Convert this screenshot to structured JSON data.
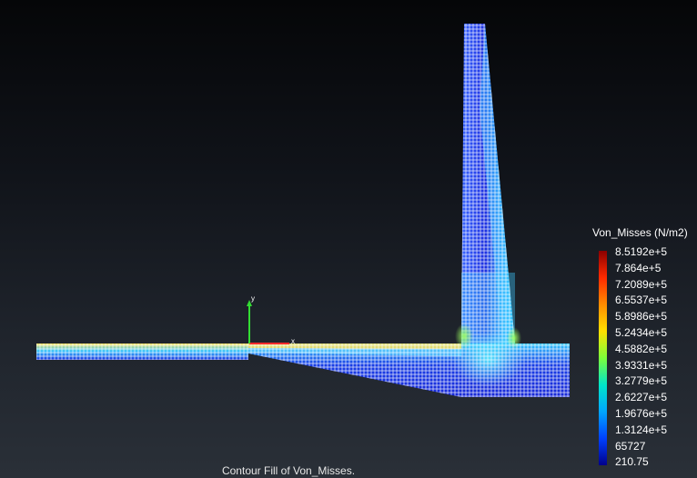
{
  "viewport": {
    "background_top": "#050608",
    "background_bottom": "#2a3038"
  },
  "axes": {
    "x_label": "x",
    "y_label": "y",
    "x_color": "#ff2a2a",
    "y_color": "#33dd33"
  },
  "legend": {
    "title": "Von_Misses (N/m2)",
    "labels": [
      "8.5192e+5",
      "7.864e+5",
      "7.2089e+5",
      "6.5537e+5",
      "5.8986e+5",
      "5.2434e+5",
      "4.5882e+5",
      "3.9331e+5",
      "3.2779e+5",
      "2.6227e+5",
      "1.9676e+5",
      "1.3124e+5",
      "65727",
      "210.75"
    ],
    "colors": [
      "#8b0000",
      "#ff2a00",
      "#ff8c00",
      "#ffe000",
      "#7cff3a",
      "#00e6c8",
      "#00a6ff",
      "#0040ff",
      "#00008b"
    ]
  },
  "caption": "Contour Fill of Von_Misses."
}
